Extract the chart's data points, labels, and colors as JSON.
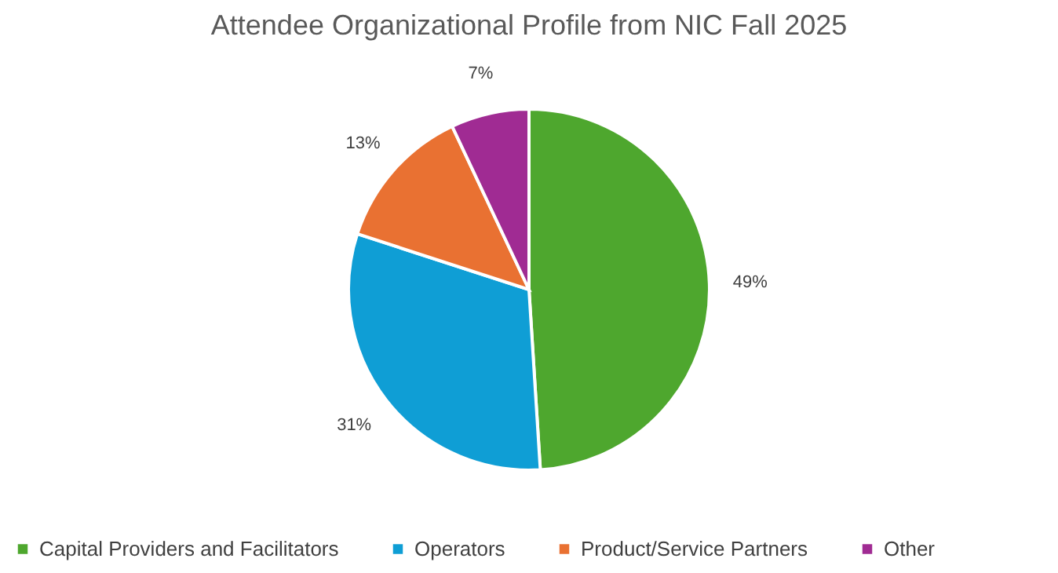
{
  "chart_data": {
    "type": "pie",
    "title": "Attendee Organizational Profile from NIC Fall 2025",
    "categories": [
      "Capital Providers and Facilitators",
      "Operators",
      "Product/Service Partners",
      "Other"
    ],
    "values": [
      49,
      31,
      13,
      7
    ],
    "value_labels": [
      "49%",
      "31%",
      "13%",
      "7%"
    ],
    "colors": [
      "#4ea72e",
      "#0f9ed5",
      "#e97132",
      "#a02b93"
    ],
    "legend": "bottom"
  }
}
